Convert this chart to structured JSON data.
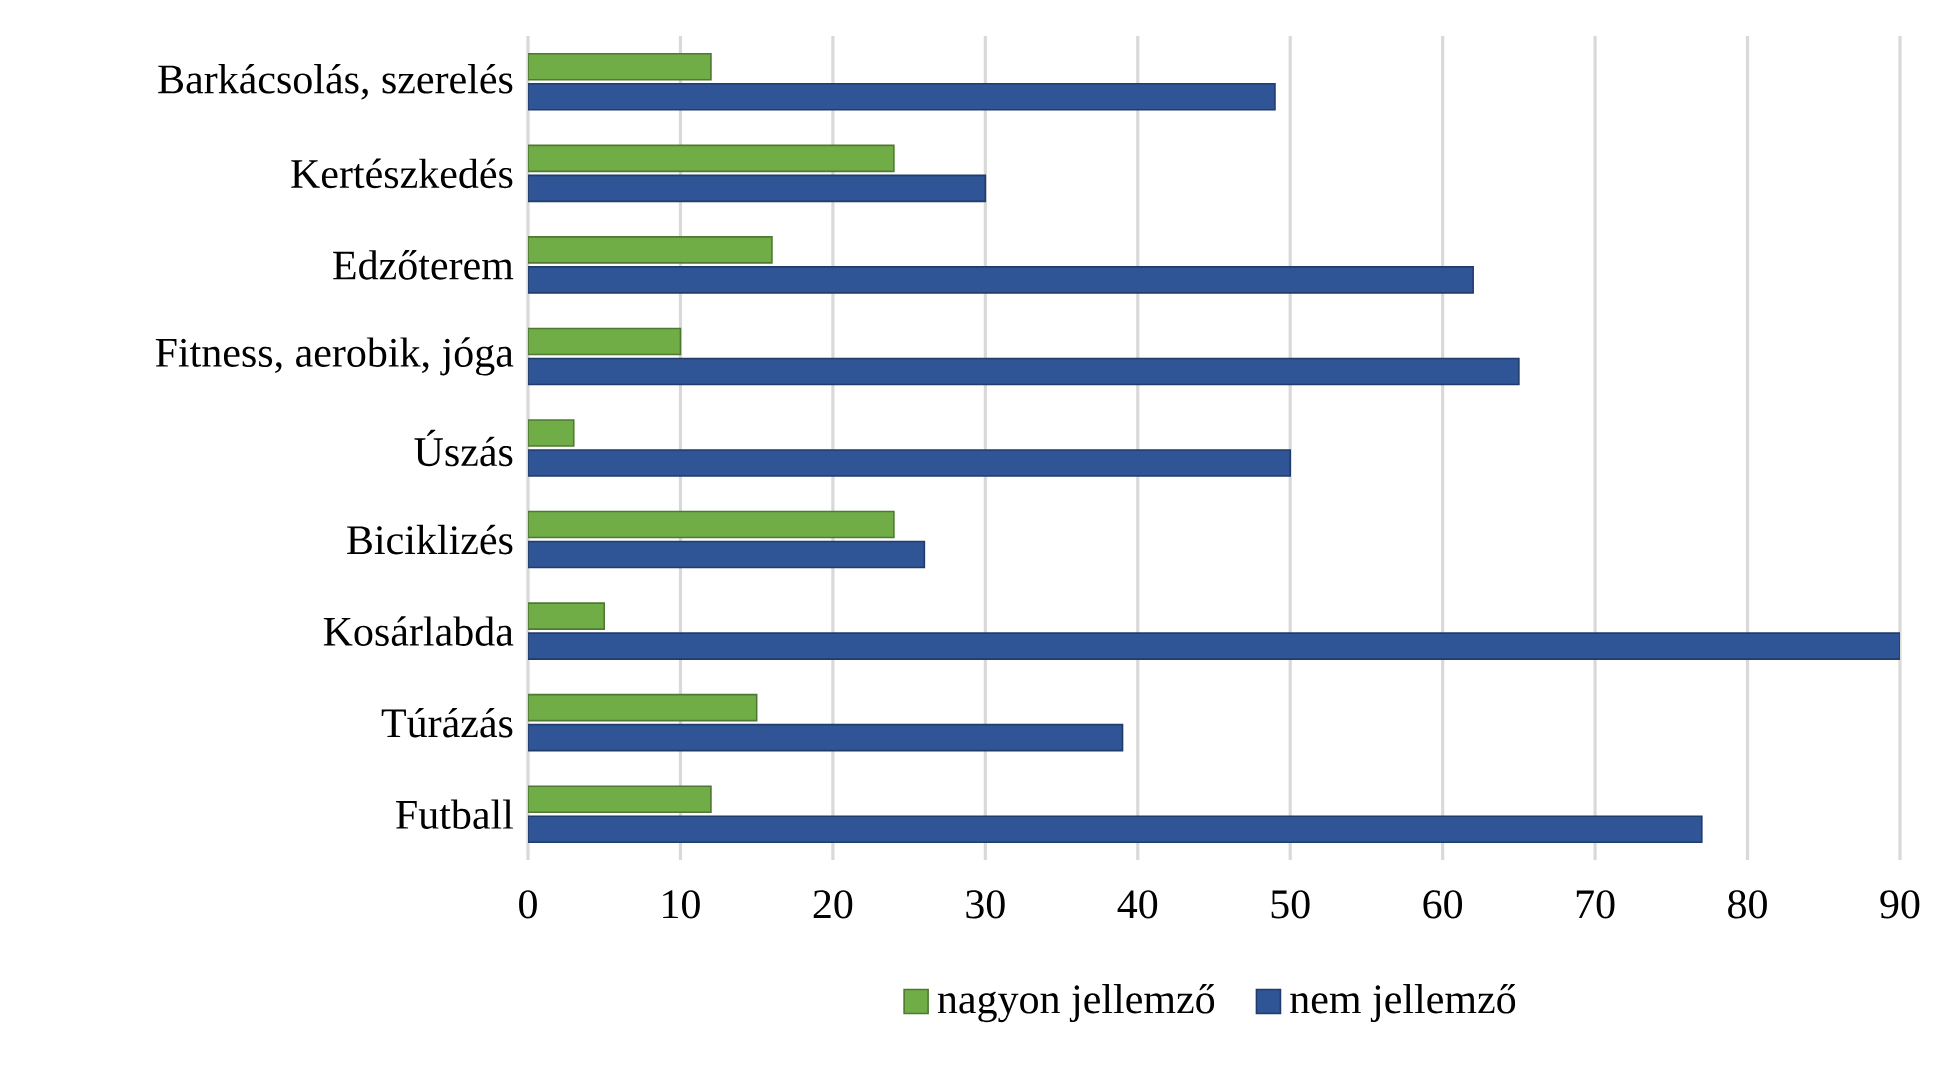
{
  "chart_data": {
    "type": "bar",
    "orientation": "horizontal",
    "categories": [
      "Barkácsolás, szerelés",
      "Kertészkedés",
      "Edzőterem",
      "Fitness, aerobik, jóga",
      "Úszás",
      "Biciklizés",
      "Kosárlabda",
      "Túrázás",
      "Futball"
    ],
    "series": [
      {
        "name": "nagyon jellemző",
        "color": "#70ad47",
        "values": [
          12,
          24,
          16,
          10,
          3,
          24,
          5,
          15,
          12
        ]
      },
      {
        "name": "nem jellemző",
        "color": "#2f5597",
        "values": [
          49,
          30,
          62,
          65,
          50,
          26,
          90,
          39,
          77
        ]
      }
    ],
    "xlim": [
      0,
      90
    ],
    "xticks": [
      0,
      10,
      20,
      30,
      40,
      50,
      60,
      70,
      80,
      90
    ],
    "grid": "x",
    "legend": "bottom"
  }
}
